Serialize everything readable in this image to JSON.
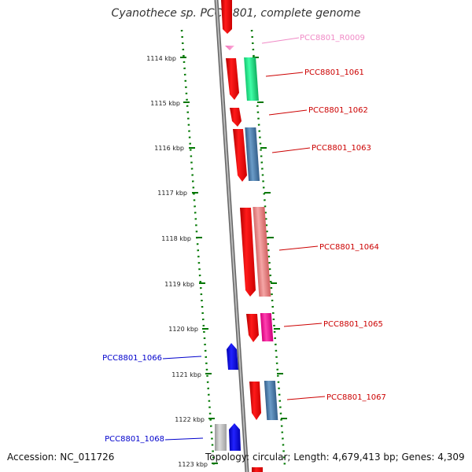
{
  "title": "Cyanothece sp. PCC 8801, complete genome",
  "accession": "Accession: NC_011726",
  "topology": "Topology: circular; Length: 4,679,413 bp; Genes: 4,309",
  "colors": {
    "forward_strand": "#ff0000",
    "reverse_strand": "#0000ee",
    "rna": "#f7a6d6",
    "tick": "#007700",
    "backbone": "#888888"
  },
  "ruler_ticks": [
    "1114 kbp",
    "1115 kbp",
    "1116 kbp",
    "1117 kbp",
    "1118 kbp",
    "1119 kbp",
    "1120 kbp",
    "1121 kbp",
    "1122 kbp",
    "1123 kbp"
  ],
  "gene_labels": [
    {
      "text": "PCC8801_R0009",
      "color": "#f08ac6"
    },
    {
      "text": "PCC8801_1061",
      "color": "#cc0000"
    },
    {
      "text": "PCC8801_1062",
      "color": "#cc0000"
    },
    {
      "text": "PCC8801_1063",
      "color": "#cc0000"
    },
    {
      "text": "PCC8801_1064",
      "color": "#cc0000"
    },
    {
      "text": "PCC8801_1065",
      "color": "#cc0000"
    },
    {
      "text": "PCC8801_1066",
      "color": "#0000cc"
    },
    {
      "text": "PCC8801_1067",
      "color": "#cc0000"
    },
    {
      "text": "PCC8801_1068",
      "color": "#0000cc"
    }
  ]
}
